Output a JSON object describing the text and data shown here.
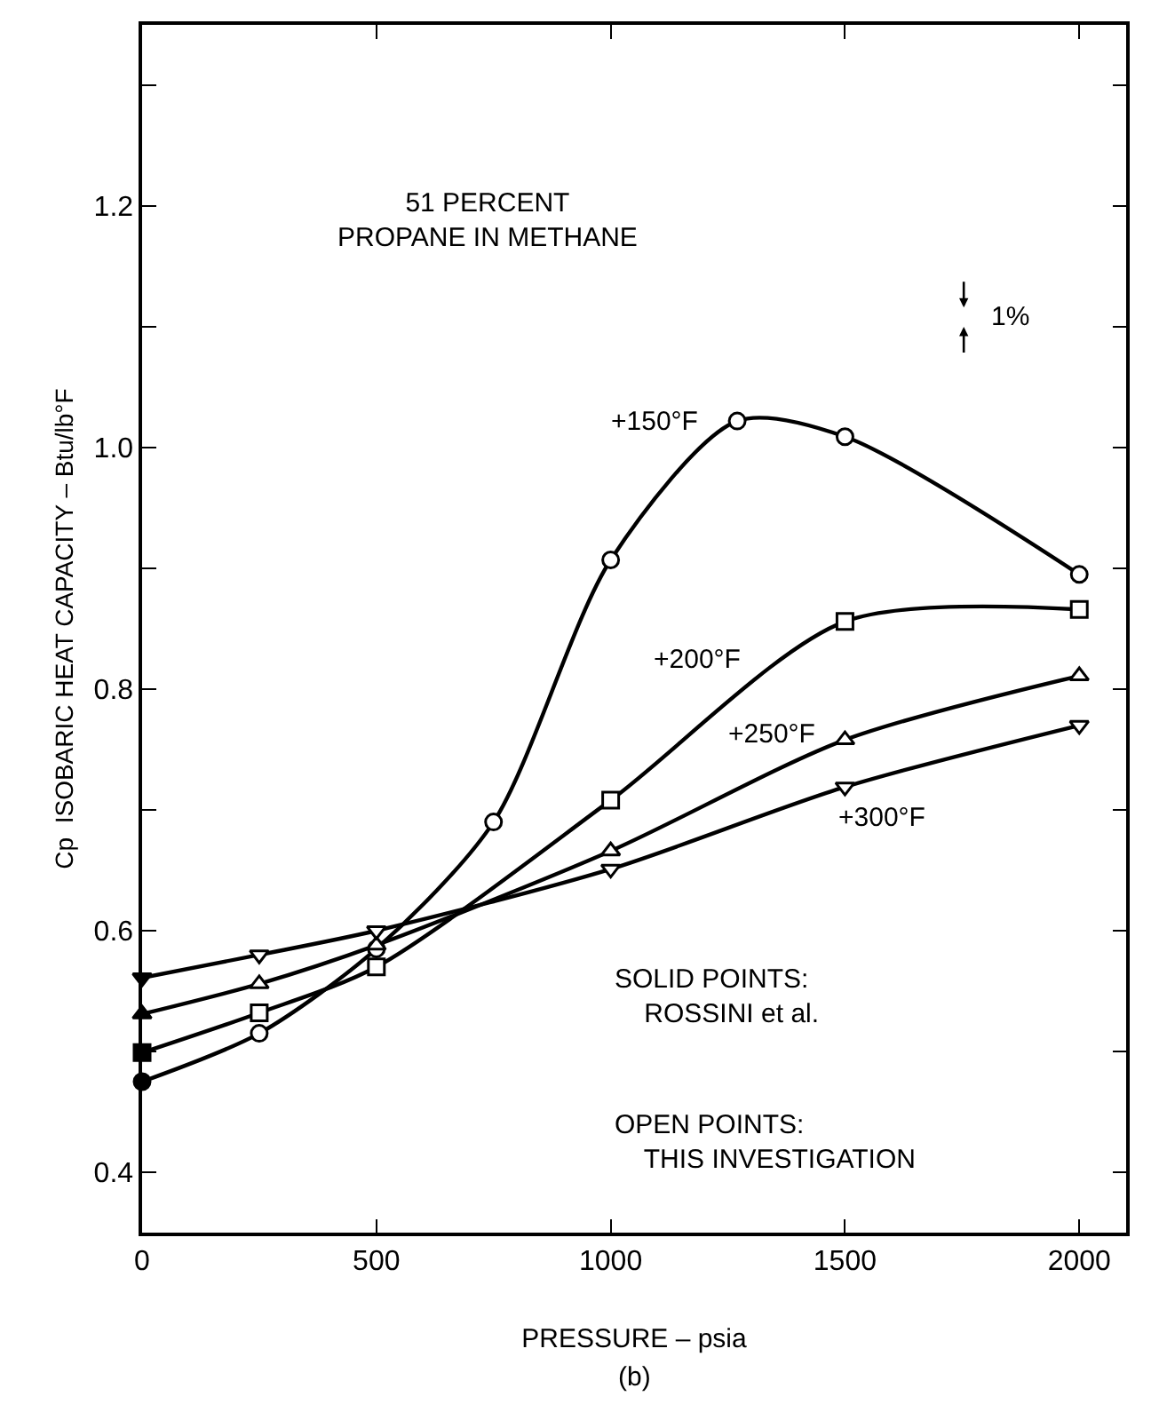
{
  "chart_data": {
    "type": "line",
    "xlabel": "PRESSURE – psia",
    "ylabel": "Cp  ISOBARIC HEAT CAPACITY – Btu/lb°F",
    "xlim": [
      0,
      2100
    ],
    "xticks": [
      0,
      500,
      1000,
      1500,
      2000
    ],
    "ylim": [
      0.35,
      1.35
    ],
    "yticks": [
      0.4,
      {
        "value": 0.5,
        "label": null
      },
      0.6,
      {
        "value": 0.7,
        "label": null
      },
      0.8,
      {
        "value": 0.9,
        "label": null
      },
      {
        "value": 1.0,
        "label": "1.0"
      },
      {
        "value": 1.1,
        "label": null
      },
      1.2,
      {
        "value": 1.3,
        "label": null
      }
    ],
    "legend": false,
    "line_style": "solid",
    "series": [
      {
        "marker": "circle",
        "color": "#000000",
        "x": [
          0,
          250,
          500,
          750,
          1000,
          1270,
          1500,
          2000
        ],
        "values": [
          0.475,
          0.515,
          0.585,
          0.69,
          0.907,
          1.022,
          1.009,
          0.895
        ],
        "colors": [
          "#000000",
          "#ffffff",
          "#ffffff",
          "#ffffff",
          "#ffffff",
          "#ffffff",
          "#ffffff",
          "#ffffff"
        ]
      },
      {
        "marker": "square",
        "color": "#000000",
        "x": [
          0,
          250,
          500,
          1000,
          1500,
          2000
        ],
        "values": [
          0.499,
          0.532,
          0.57,
          0.708,
          0.856,
          0.866
        ],
        "colors": [
          "#000000",
          "#ffffff",
          "#ffffff",
          "#ffffff",
          "#ffffff",
          "#ffffff"
        ]
      },
      {
        "marker": "triangle",
        "color": "#000000",
        "x": [
          0,
          250,
          500,
          1000,
          1500,
          2000
        ],
        "values": [
          0.531,
          0.556,
          0.588,
          0.666,
          0.758,
          0.811
        ],
        "colors": [
          "#000000",
          "#ffffff",
          "#ffffff",
          "#ffffff",
          "#ffffff",
          "#ffffff"
        ]
      },
      {
        "marker": "triangle-down",
        "color": "#000000",
        "x": [
          0,
          250,
          500,
          1000,
          1500,
          2000
        ],
        "values": [
          0.561,
          0.58,
          0.6,
          0.651,
          0.719,
          0.77
        ],
        "colors": [
          "#000000",
          "#ffffff",
          "#ffffff",
          "#ffffff",
          "#ffffff",
          "#ffffff"
        ]
      }
    ],
    "annotations": [
      "+150°F",
      "+200°F",
      "+250°F",
      "+300°F",
      "51 PERCENT\nPROPANE IN METHANE",
      "1%",
      "SOLID POINTS:\n    ROSSINI et al.",
      "OPEN POINTS:\n    THIS INVESTIGATION",
      "(b)"
    ]
  }
}
